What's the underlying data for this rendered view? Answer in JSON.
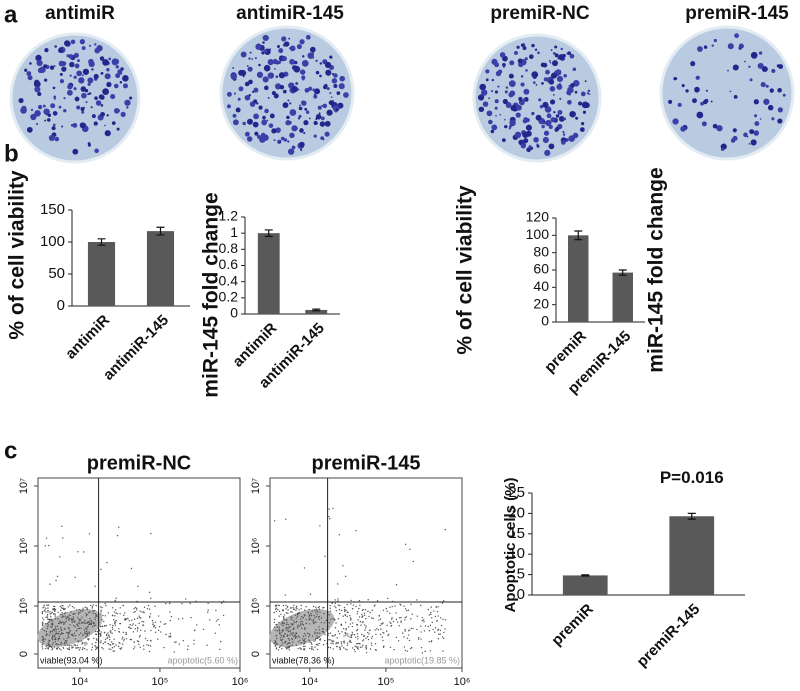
{
  "panel_labels": [
    "a",
    "b",
    "c"
  ],
  "dishes": [
    "antimiR",
    "antimiR-145",
    "premiR-NC",
    "premiR-145"
  ],
  "chart_data": [
    {
      "type": "bar",
      "y_label": "% of cell viability",
      "categories": [
        "antimiR",
        "antimiR-145"
      ],
      "values": [
        100,
        117
      ],
      "errors": [
        5,
        6
      ],
      "color": "#595959",
      "ylim": [
        0,
        150
      ],
      "yticks": [
        0,
        50,
        100,
        150
      ]
    },
    {
      "type": "bar",
      "y_label": "miR-145 fold change",
      "categories": [
        "antimiR",
        "antimiR-145"
      ],
      "values": [
        1.0,
        0.05
      ],
      "errors": [
        0.04,
        0.01
      ],
      "color": "#595959",
      "ylim": [
        0,
        1.2
      ],
      "yticks": [
        0,
        0.2,
        0.4,
        0.6,
        0.8,
        1,
        1.2
      ]
    },
    {
      "type": "bar",
      "y_label": "% of cell viability",
      "categories": [
        "premiR",
        "premiR-145"
      ],
      "values": [
        100,
        57
      ],
      "errors": [
        5,
        3
      ],
      "color": "#595959",
      "ylim": [
        0,
        120
      ],
      "yticks": [
        0,
        20,
        40,
        60,
        80,
        100,
        120
      ]
    },
    {
      "type": "bar",
      "y_label": "miR-145 fold change"
    },
    {
      "type": "bar",
      "y_label": "Apoptotic cells (%)",
      "categories": [
        "premiR",
        "premiR-145"
      ],
      "values": [
        4.8,
        19.3
      ],
      "errors": [
        0.15,
        0.7
      ],
      "color": "#595959",
      "ylim": [
        0,
        25
      ],
      "yticks": [
        0,
        5,
        10,
        15,
        20,
        25
      ],
      "annotation": "P=0.016"
    },
    {
      "type": "flow",
      "title": "premiR-NC",
      "x_scale": "log",
      "xlim": [
        3000,
        1000000
      ],
      "xticks": [
        {
          "value": 10000,
          "label": "10⁴"
        },
        {
          "value": 100000,
          "label": "10⁵"
        },
        {
          "value": 1000000,
          "label": "10⁶"
        }
      ],
      "ylim": [
        0,
        10000000
      ],
      "yticks": [
        0,
        {
          "value": 100000,
          "label": "10⁵"
        },
        {
          "value": 1000000,
          "label": "10⁶"
        },
        {
          "value": 10000000,
          "label": "10⁷"
        }
      ],
      "annotations": [
        "viable(93.04 %)",
        "apoptotic(5.60 %)"
      ]
    },
    {
      "type": "flow",
      "title": "premiR-145",
      "x_scale": "log",
      "xlim": [
        3000,
        1000000
      ],
      "xticks": [
        {
          "value": 10000,
          "label": "10⁴"
        },
        {
          "value": 100000,
          "label": "10⁵"
        },
        {
          "value": 1000000,
          "label": "10⁶"
        }
      ],
      "ylim": [
        0,
        10000000
      ],
      "yticks": [
        0,
        {
          "value": 100000,
          "label": "10⁵"
        },
        {
          "value": 1000000,
          "label": "10⁶"
        },
        {
          "value": 10000000,
          "label": "10⁷"
        }
      ],
      "annotations": [
        "viable(78.36 %)",
        "apoptotic(19.85 %)"
      ]
    }
  ]
}
